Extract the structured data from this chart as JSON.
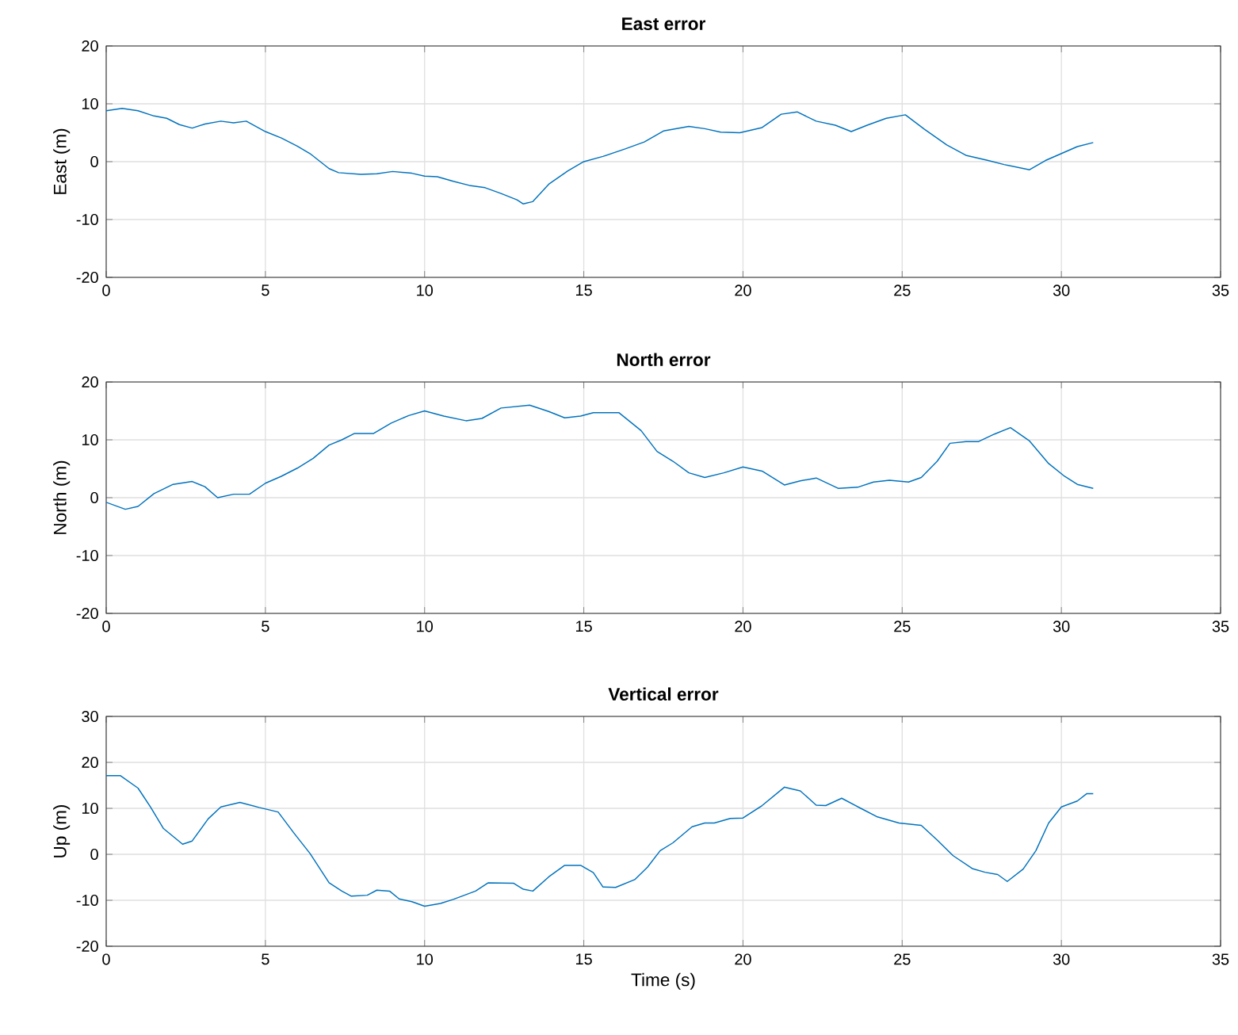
{
  "chart_data": [
    {
      "type": "line",
      "title": "East error",
      "ylabel": "East (m)",
      "xlim": [
        0,
        35
      ],
      "ylim": [
        -20,
        20
      ],
      "xticks": [
        0,
        5,
        10,
        15,
        20,
        25,
        30,
        35
      ],
      "yticks": [
        -20,
        -10,
        0,
        10,
        20
      ],
      "grid": true,
      "x": [
        0,
        0.5,
        1,
        1.5,
        1.9,
        2.3,
        2.7,
        3.1,
        3.6,
        4,
        4.4,
        5,
        5.5,
        6,
        6.4,
        7,
        7.3,
        8,
        8.5,
        9,
        9.6,
        10,
        10.4,
        10.9,
        11.4,
        11.9,
        12.4,
        12.9,
        13.1,
        13.4,
        13.9,
        14.5,
        15,
        15.6,
        16.3,
        16.9,
        17.5,
        18.3,
        18.8,
        19.3,
        19.9,
        20.6,
        21.2,
        21.7,
        22.3,
        22.9,
        23.4,
        23.9,
        24.5,
        25.1,
        25.7,
        26.4,
        27,
        27.7,
        28.2,
        29,
        29.5,
        30,
        30.5,
        31
      ],
      "series": [
        {
          "color": "#0072bd",
          "values": [
            8.8,
            9.2,
            8.8,
            7.9,
            7.5,
            6.4,
            5.8,
            6.5,
            7,
            6.7,
            7,
            5.2,
            4.1,
            2.7,
            1.4,
            -1.2,
            -1.9,
            -2.2,
            -2.1,
            -1.7,
            -2,
            -2.5,
            -2.6,
            -3.4,
            -4.1,
            -4.5,
            -5.5,
            -6.6,
            -7.3,
            -6.9,
            -3.9,
            -1.6,
            0,
            0.9,
            2.2,
            3.4,
            5.3,
            6.1,
            5.7,
            5.1,
            5,
            5.9,
            8.2,
            8.6,
            7,
            6.3,
            5.2,
            6.3,
            7.5,
            8.1,
            5.6,
            2.9,
            1.1,
            0.2,
            -0.5,
            -1.4,
            0.2,
            1.4,
            2.6,
            3.3
          ]
        }
      ]
    },
    {
      "type": "line",
      "title": "North error",
      "ylabel": "North (m)",
      "xlim": [
        0,
        35
      ],
      "ylim": [
        -20,
        20
      ],
      "xticks": [
        0,
        5,
        10,
        15,
        20,
        25,
        30,
        35
      ],
      "yticks": [
        -20,
        -10,
        0,
        10,
        20
      ],
      "grid": true,
      "x": [
        0,
        0.6,
        1,
        1.5,
        2.1,
        2.7,
        3.1,
        3.5,
        4,
        4.5,
        5,
        5.5,
        6,
        6.5,
        7,
        7.4,
        7.8,
        8.4,
        8.95,
        9.5,
        10,
        10.6,
        11.3,
        11.8,
        12.4,
        13.3,
        13.9,
        14.4,
        14.9,
        15.3,
        16.1,
        16.8,
        17.3,
        17.8,
        18.3,
        18.8,
        19.4,
        20,
        20.6,
        21.3,
        21.8,
        22.3,
        23,
        23.6,
        24.1,
        24.6,
        25.2,
        25.6,
        26.1,
        26.5,
        27,
        27.4,
        27.9,
        28.4,
        29,
        29.6,
        30.1,
        30.5,
        31
      ],
      "series": [
        {
          "color": "#0072bd",
          "values": [
            -0.8,
            -2,
            -1.5,
            0.7,
            2.3,
            2.8,
            1.9,
            0,
            0.6,
            0.6,
            2.5,
            3.7,
            5.1,
            6.8,
            9.1,
            10,
            11.1,
            11.1,
            12.9,
            14.2,
            15,
            14.1,
            13.3,
            13.7,
            15.5,
            16,
            14.9,
            13.8,
            14.1,
            14.7,
            14.7,
            11.6,
            8,
            6.3,
            4.3,
            3.5,
            4.3,
            5.3,
            4.6,
            2.2,
            2.9,
            3.4,
            1.6,
            1.8,
            2.7,
            3,
            2.7,
            3.5,
            6.3,
            9.4,
            9.7,
            9.7,
            11,
            12.1,
            9.8,
            5.9,
            3.7,
            2.3,
            1.6
          ]
        }
      ]
    },
    {
      "type": "line",
      "title": "Vertical error",
      "xlabel": "Time (s)",
      "ylabel": "Up (m)",
      "xlim": [
        0,
        35
      ],
      "ylim": [
        -20,
        30
      ],
      "xticks": [
        0,
        5,
        10,
        15,
        20,
        25,
        30,
        35
      ],
      "yticks": [
        -20,
        -10,
        0,
        10,
        20,
        30
      ],
      "grid": true,
      "x": [
        0,
        0.45,
        1,
        1.4,
        1.8,
        2.4,
        2.7,
        3.2,
        3.6,
        4.2,
        4.8,
        5.4,
        5.9,
        6.4,
        7,
        7.4,
        7.7,
        8.2,
        8.5,
        8.9,
        9.2,
        9.6,
        10,
        10.5,
        10.9,
        11.6,
        12,
        12.8,
        13.1,
        13.4,
        13.9,
        14.4,
        14.9,
        15.3,
        15.6,
        16,
        16.6,
        17,
        17.4,
        17.8,
        18.4,
        18.8,
        19.1,
        19.6,
        20,
        20.6,
        21.3,
        21.8,
        22.3,
        22.6,
        23.1,
        23.7,
        24.2,
        24.9,
        25.6,
        26.1,
        26.6,
        27.2,
        27.6,
        28,
        28.3,
        28.8,
        29.2,
        29.6,
        30,
        30.5,
        30.8,
        31
      ],
      "series": [
        {
          "color": "#0072bd",
          "values": [
            17.1,
            17.1,
            14.4,
            10.2,
            5.6,
            2.2,
            2.9,
            7.7,
            10.3,
            11.3,
            10.2,
            9.2,
            4.6,
            0.2,
            -6.2,
            -8,
            -9.1,
            -8.9,
            -7.8,
            -8,
            -9.7,
            -10.3,
            -11.3,
            -10.7,
            -9.8,
            -8,
            -6.2,
            -6.3,
            -7.6,
            -8,
            -4.9,
            -2.4,
            -2.4,
            -4,
            -7.1,
            -7.2,
            -5.5,
            -2.8,
            0.8,
            2.5,
            6,
            6.8,
            6.8,
            7.8,
            7.9,
            10.6,
            14.6,
            13.8,
            10.7,
            10.6,
            12.2,
            10,
            8.2,
            6.8,
            6.3,
            3.1,
            -0.3,
            -3.1,
            -3.9,
            -4.4,
            -5.9,
            -3.2,
            0.8,
            6.8,
            10.3,
            11.6,
            13.2,
            13.2
          ]
        }
      ]
    }
  ]
}
